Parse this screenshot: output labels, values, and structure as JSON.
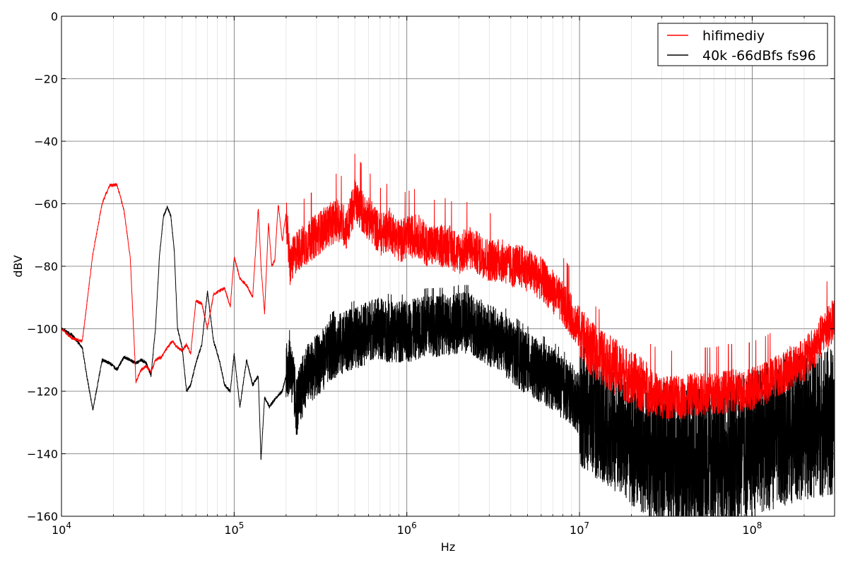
{
  "chart_data": {
    "type": "line",
    "title": "",
    "xlabel": "Hz",
    "ylabel": "dBV",
    "xscale": "log",
    "xlim": [
      10000,
      300000000
    ],
    "ylim": [
      -160,
      0
    ],
    "grid": true,
    "legend_position": "top-right",
    "x_ticks": [
      {
        "value": 10000,
        "base": "10",
        "exp": "4"
      },
      {
        "value": 100000,
        "base": "10",
        "exp": "5"
      },
      {
        "value": 1000000,
        "base": "10",
        "exp": "6"
      },
      {
        "value": 10000000,
        "base": "10",
        "exp": "7"
      },
      {
        "value": 100000000,
        "base": "10",
        "exp": "8"
      }
    ],
    "y_ticks": [
      {
        "value": 0,
        "label": "0"
      },
      {
        "value": -20,
        "label": "−20"
      },
      {
        "value": -40,
        "label": "−40"
      },
      {
        "value": -60,
        "label": "−60"
      },
      {
        "value": -80,
        "label": "−80"
      },
      {
        "value": -100,
        "label": "−100"
      },
      {
        "value": -120,
        "label": "−120"
      },
      {
        "value": -140,
        "label": "−140"
      },
      {
        "value": -160,
        "label": "−160"
      }
    ],
    "series": [
      {
        "name": "hifimediy",
        "color": "#ff0000",
        "x": [
          10000,
          11500,
          13200,
          15200,
          17200,
          19000,
          21000,
          23000,
          25000,
          27000,
          29000,
          31000,
          33000,
          35000,
          38000,
          41000,
          44000,
          47000,
          50000,
          53000,
          56000,
          60000,
          65000,
          70000,
          76000,
          82000,
          88000,
          95000,
          100000,
          108000,
          118000,
          128000,
          138000,
          143000,
          150000,
          158000,
          165000,
          172000,
          180000,
          190000,
          200000,
          210000,
          230000,
          260000,
          300000,
          350000,
          400000,
          450000,
          500000,
          560000,
          630000,
          700000,
          800000,
          900000,
          1000000,
          1150000,
          1300000,
          1500000,
          1700000,
          2000000,
          2300000,
          2600000,
          3000000,
          3500000,
          4000000,
          4600000,
          5300000,
          6000000,
          7000000,
          8000000,
          9000000,
          10000000,
          11000000,
          12500000,
          14000000,
          16000000,
          18000000,
          20000000,
          23000000,
          26000000,
          30000000,
          35000000,
          40000000,
          46000000,
          53000000,
          60000000,
          70000000,
          80000000,
          90000000,
          100000000,
          115000000,
          130000000,
          150000000,
          170000000,
          200000000,
          230000000,
          260000000,
          300000000
        ],
        "y": [
          -100,
          -103,
          -104,
          -76,
          -60,
          -54,
          -54,
          -62,
          -77,
          -117,
          -113,
          -112,
          -114,
          -110,
          -109,
          -106,
          -104,
          -106,
          -107,
          -105,
          -108,
          -91,
          -92,
          -100,
          -89,
          -88,
          -87,
          -93,
          -77,
          -84,
          -86,
          -90,
          -61,
          -80,
          -95,
          -66,
          -80,
          -78,
          -60,
          -72,
          -63,
          -80,
          -75,
          -73,
          -70,
          -67,
          -65,
          -68,
          -59,
          -63,
          -66,
          -70,
          -68,
          -72,
          -71,
          -70,
          -73,
          -74,
          -73,
          -76,
          -74,
          -76,
          -78,
          -78,
          -80,
          -80,
          -82,
          -84,
          -88,
          -92,
          -96,
          -100,
          -105,
          -108,
          -110,
          -112,
          -114,
          -116,
          -118,
          -120,
          -122,
          -122,
          -122,
          -121,
          -121,
          -121,
          -120,
          -120,
          -120,
          -119,
          -118,
          -116,
          -114,
          -112,
          -110,
          -106,
          -101,
          -97
        ]
      },
      {
        "name": "40k -66dBfs fs96",
        "color": "#000000",
        "x": [
          10000,
          11500,
          13200,
          14000,
          15200,
          17200,
          19000,
          21000,
          23000,
          25000,
          27000,
          29000,
          31000,
          33000,
          35000,
          37000,
          39000,
          41000,
          43000,
          45000,
          47000,
          50000,
          53000,
          56000,
          60000,
          65000,
          70000,
          76000,
          82000,
          88000,
          95000,
          100000,
          108000,
          118000,
          128000,
          138000,
          143000,
          150000,
          160000,
          175000,
          190000,
          210000,
          230000,
          260000,
          300000,
          350000,
          400000,
          450000,
          500000,
          560000,
          630000,
          700000,
          800000,
          900000,
          1000000,
          1150000,
          1300000,
          1500000,
          1700000,
          2000000,
          2300000,
          2600000,
          3000000,
          3500000,
          4000000,
          4600000,
          5300000,
          6000000,
          7000000,
          8000000,
          9000000,
          10000000,
          11000000,
          12500000,
          14000000,
          16000000,
          18000000,
          20000000,
          23000000,
          26000000,
          30000000,
          35000000,
          40000000,
          46000000,
          53000000,
          60000000,
          70000000,
          80000000,
          90000000,
          100000000,
          115000000,
          130000000,
          150000000,
          170000000,
          200000000,
          230000000,
          260000000,
          300000000
        ],
        "y": [
          -100,
          -102,
          -106,
          -115,
          -126,
          -110,
          -111,
          -113,
          -109,
          -110,
          -111,
          -110,
          -111,
          -115,
          -100,
          -76,
          -64,
          -61,
          -64,
          -75,
          -100,
          -106,
          -120,
          -118,
          -111,
          -105,
          -88,
          -104,
          -110,
          -118,
          -120,
          -108,
          -125,
          -110,
          -118,
          -115,
          -142,
          -122,
          -125,
          -122,
          -120,
          -110,
          -125,
          -115,
          -112,
          -108,
          -105,
          -104,
          -103,
          -102,
          -100,
          -100,
          -101,
          -101,
          -101,
          -100,
          -99,
          -99,
          -99,
          -98,
          -98,
          -100,
          -102,
          -104,
          -107,
          -110,
          -112,
          -114,
          -116,
          -119,
          -121,
          -124,
          -126,
          -128,
          -130,
          -133,
          -135,
          -137,
          -139,
          -140,
          -141,
          -142,
          -142,
          -142,
          -141,
          -141,
          -140,
          -139,
          -138,
          -137,
          -135,
          -134,
          -133,
          -132,
          -131,
          -130,
          -130,
          -130
        ]
      }
    ]
  }
}
